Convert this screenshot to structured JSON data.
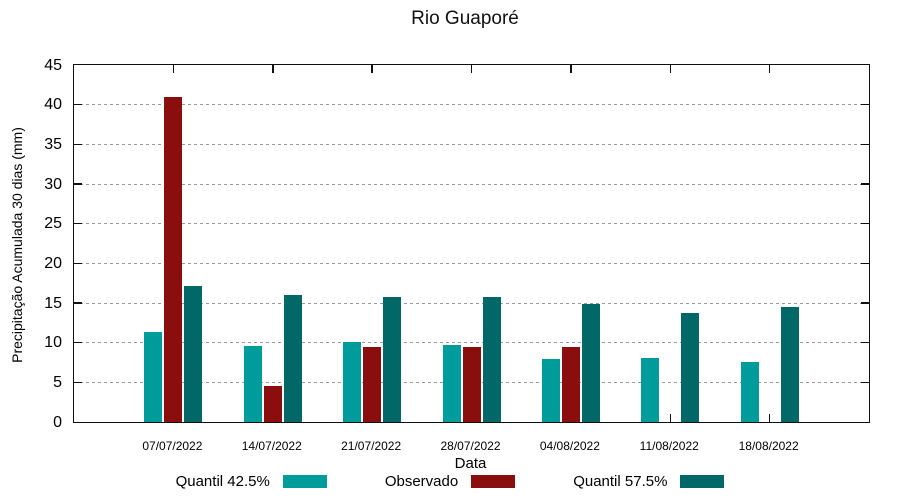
{
  "chart_data": {
    "type": "bar",
    "title": "Rio Guaporé",
    "xlabel": "Data",
    "ylabel": "Precipitação Acumulada 30 dias (mm)",
    "ylim": [
      0,
      45
    ],
    "ytick_step": 5,
    "grid": "horizontal-dotted",
    "legend_position": "bottom",
    "border": "full-box-with-mirrored-ticks",
    "background_color": "#ffffff",
    "gridline_color": "#9a9a9a",
    "categories": [
      "07/07/2022",
      "14/07/2022",
      "21/07/2022",
      "28/07/2022",
      "04/08/2022",
      "11/08/2022",
      "18/08/2022"
    ],
    "series": [
      {
        "name": "Quantil 42.5%",
        "color": "#009C9C",
        "values": [
          11.4,
          9.6,
          10.1,
          9.7,
          8.0,
          8.1,
          7.6
        ]
      },
      {
        "name": "Observado",
        "color": "#8B0E0E",
        "values": [
          41.0,
          4.5,
          9.5,
          9.5,
          9.5,
          null,
          null
        ]
      },
      {
        "name": "Quantil 57.5%",
        "color": "#016767",
        "values": [
          17.2,
          16.0,
          15.8,
          15.8,
          14.9,
          13.7,
          14.5
        ]
      }
    ]
  }
}
